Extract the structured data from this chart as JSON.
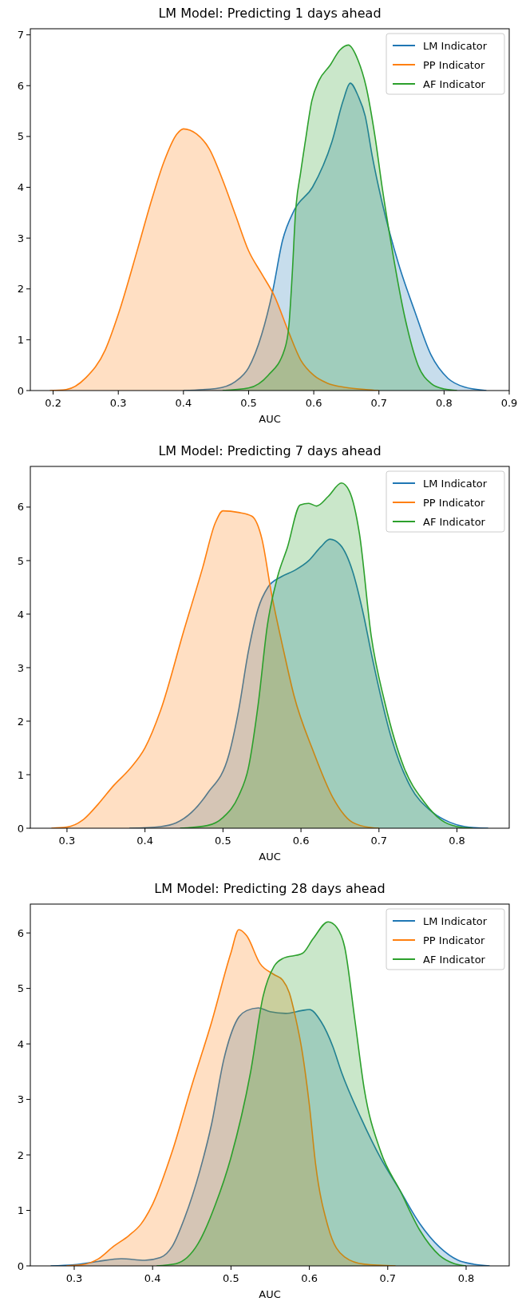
{
  "chart_data": [
    {
      "type": "area",
      "title": "LM Model: Predicting 1 days ahead",
      "xlabel": "AUC",
      "xlim": [
        0.165,
        0.9
      ],
      "xticks": [
        {
          "value": 0.2,
          "label": "0.2"
        },
        {
          "value": 0.3,
          "label": "0.3"
        },
        {
          "value": 0.4,
          "label": "0.4"
        },
        {
          "value": 0.5,
          "label": "0.5"
        },
        {
          "value": 0.6,
          "label": "0.6"
        },
        {
          "value": 0.7,
          "label": "0.7"
        },
        {
          "value": 0.8,
          "label": "0.8"
        },
        {
          "value": 0.9,
          "label": "0.9"
        }
      ],
      "ylim": [
        0,
        7.12
      ],
      "yticks": [
        0,
        1,
        2,
        3,
        4,
        5,
        6,
        7
      ],
      "legend": "top right",
      "series": [
        {
          "name": "LM Indicator",
          "color": "#1f77b4",
          "x": [
            0.4,
            0.45,
            0.48,
            0.5,
            0.52,
            0.537,
            0.552,
            0.57,
            0.598,
            0.628,
            0.645,
            0.656,
            0.668,
            0.679,
            0.69,
            0.704,
            0.73,
            0.755,
            0.78,
            0.806,
            0.831,
            0.865
          ],
          "values": [
            0,
            0.04,
            0.18,
            0.45,
            1.1,
            1.96,
            2.95,
            3.55,
            4.0,
            4.9,
            5.7,
            6.05,
            5.8,
            5.4,
            4.6,
            3.75,
            2.5,
            1.56,
            0.7,
            0.24,
            0.07,
            0
          ]
        },
        {
          "name": "PP Indicator",
          "color": "#ff7f0e",
          "x": [
            0.195,
            0.22,
            0.25,
            0.28,
            0.3,
            0.33,
            0.35,
            0.37,
            0.39,
            0.4,
            0.42,
            0.44,
            0.46,
            0.48,
            0.5,
            0.52,
            0.54,
            0.56,
            0.58,
            0.6,
            0.62,
            0.65,
            0.68,
            0.7
          ],
          "values": [
            0,
            0.02,
            0.25,
            0.8,
            1.5,
            2.8,
            3.7,
            4.5,
            5.05,
            5.15,
            5.05,
            4.75,
            4.15,
            3.45,
            2.75,
            2.3,
            1.85,
            1.2,
            0.6,
            0.3,
            0.15,
            0.06,
            0.02,
            0
          ]
        },
        {
          "name": "AF Indicator",
          "color": "#2ca02c",
          "x": [
            0.46,
            0.5,
            0.53,
            0.555,
            0.562,
            0.567,
            0.572,
            0.58,
            0.587,
            0.597,
            0.608,
            0.625,
            0.64,
            0.653,
            0.668,
            0.68,
            0.694,
            0.705,
            0.72,
            0.74,
            0.76,
            0.78,
            0.8,
            0.82
          ],
          "values": [
            0,
            0.05,
            0.3,
            0.8,
            1.3,
            2.3,
            3.5,
            4.3,
            4.9,
            5.7,
            6.1,
            6.4,
            6.7,
            6.8,
            6.5,
            6.0,
            5.0,
            4.0,
            2.8,
            1.43,
            0.5,
            0.14,
            0.03,
            0
          ]
        }
      ]
    },
    {
      "type": "area",
      "title": "LM Model: Predicting 7 days ahead",
      "xlabel": "AUC",
      "xlim": [
        0.253,
        0.867
      ],
      "xticks": [
        {
          "value": 0.3,
          "label": "0.3"
        },
        {
          "value": 0.4,
          "label": "0.4"
        },
        {
          "value": 0.5,
          "label": "0.5"
        },
        {
          "value": 0.6,
          "label": "0.6"
        },
        {
          "value": 0.7,
          "label": "0.7"
        },
        {
          "value": 0.8,
          "label": "0.8"
        }
      ],
      "ylim": [
        0,
        6.76
      ],
      "yticks": [
        0,
        1,
        2,
        3,
        4,
        5,
        6
      ],
      "legend": "top right",
      "series": [
        {
          "name": "LM Indicator",
          "color": "#1f77b4",
          "x": [
            0.38,
            0.42,
            0.44,
            0.46,
            0.48,
            0.5075,
            0.52,
            0.5325,
            0.545,
            0.5575,
            0.575,
            0.591,
            0.61,
            0.625,
            0.637,
            0.65,
            0.666,
            0.68,
            0.691,
            0.716,
            0.741,
            0.766,
            0.791,
            0.81,
            0.84
          ],
          "values": [
            0,
            0.03,
            0.1,
            0.3,
            0.65,
            1.37,
            2.2,
            3.3,
            4.1,
            4.5,
            4.7,
            4.81,
            5.0,
            5.25,
            5.4,
            5.3,
            4.81,
            4.0,
            3.21,
            1.68,
            0.76,
            0.33,
            0.11,
            0.03,
            0
          ]
        },
        {
          "name": "PP Indicator",
          "color": "#ff7f0e",
          "x": [
            0.28,
            0.3,
            0.32,
            0.34,
            0.36,
            0.38,
            0.4,
            0.42,
            0.45,
            0.474,
            0.49,
            0.5,
            0.52,
            0.537,
            0.55,
            0.562,
            0.578,
            0.591,
            0.616,
            0.641,
            0.666,
            0.69,
            0.7
          ],
          "values": [
            0,
            0.02,
            0.15,
            0.45,
            0.8,
            1.1,
            1.5,
            2.2,
            3.7,
            4.87,
            5.7,
            5.93,
            5.9,
            5.83,
            5.4,
            4.4,
            3.3,
            2.48,
            1.43,
            0.57,
            0.11,
            0.01,
            0
          ]
        },
        {
          "name": "AF Indicator",
          "color": "#2ca02c",
          "x": [
            0.445,
            0.48,
            0.5,
            0.52,
            0.5325,
            0.545,
            0.557,
            0.57,
            0.5825,
            0.599,
            0.61,
            0.62,
            0.635,
            0.652,
            0.662,
            0.675,
            0.69,
            0.7075,
            0.7325,
            0.7575,
            0.78,
            0.8,
            0.82
          ],
          "values": [
            0,
            0.05,
            0.2,
            0.6,
            1.12,
            2.3,
            3.8,
            4.7,
            5.24,
            6.04,
            6.07,
            6.02,
            6.2,
            6.45,
            6.3,
            5.5,
            3.6,
            2.35,
            1.12,
            0.5,
            0.15,
            0.03,
            0
          ]
        }
      ]
    },
    {
      "type": "area",
      "title": "LM Model: Predicting 28 days ahead",
      "xlabel": "AUC",
      "xlim": [
        0.244,
        0.855
      ],
      "xticks": [
        {
          "value": 0.3,
          "label": "0.3"
        },
        {
          "value": 0.4,
          "label": "0.4"
        },
        {
          "value": 0.5,
          "label": "0.5"
        },
        {
          "value": 0.6,
          "label": "0.6"
        },
        {
          "value": 0.7,
          "label": "0.7"
        },
        {
          "value": 0.8,
          "label": "0.8"
        }
      ],
      "ylim": [
        0,
        6.52
      ],
      "yticks": [
        0,
        1,
        2,
        3,
        4,
        5,
        6
      ],
      "legend": "top right",
      "series": [
        {
          "name": "LM Indicator",
          "color": "#1f77b4",
          "x": [
            0.27,
            0.3,
            0.33,
            0.36,
            0.39,
            0.41,
            0.425,
            0.441,
            0.46,
            0.475,
            0.491,
            0.508,
            0.52,
            0.535,
            0.55,
            0.57,
            0.59,
            0.6,
            0.615,
            0.63,
            0.641,
            0.666,
            0.691,
            0.716,
            0.741,
            0.766,
            0.79,
            0.81,
            0.83
          ],
          "values": [
            0,
            0.02,
            0.08,
            0.13,
            0.1,
            0.15,
            0.35,
            0.87,
            1.7,
            2.54,
            3.73,
            4.44,
            4.6,
            4.65,
            4.58,
            4.55,
            4.6,
            4.62,
            4.4,
            3.95,
            3.49,
            2.66,
            1.94,
            1.35,
            0.76,
            0.34,
            0.1,
            0.03,
            0
          ]
        },
        {
          "name": "PP Indicator",
          "color": "#ff7f0e",
          "x": [
            0.29,
            0.31,
            0.33,
            0.35,
            0.37,
            0.385,
            0.4,
            0.425,
            0.45,
            0.475,
            0.4997,
            0.51,
            0.52,
            0.537,
            0.555,
            0.566,
            0.5745,
            0.582,
            0.591,
            0.6,
            0.608,
            0.624,
            0.645,
            0.67,
            0.71
          ],
          "values": [
            0,
            0.02,
            0.12,
            0.35,
            0.55,
            0.75,
            1.11,
            2.06,
            3.25,
            4.38,
            5.63,
            6.06,
            5.95,
            5.45,
            5.25,
            5.15,
            4.92,
            4.5,
            3.85,
            2.9,
            1.83,
            0.7,
            0.16,
            0.03,
            0
          ]
        },
        {
          "name": "AF Indicator",
          "color": "#2ca02c",
          "x": [
            0.405,
            0.43,
            0.458,
            0.48,
            0.4997,
            0.525,
            0.541,
            0.555,
            0.566,
            0.591,
            0.605,
            0.624,
            0.635,
            0.645,
            0.658,
            0.67,
            0.691,
            0.716,
            0.741,
            0.766,
            0.785,
            0.8
          ],
          "values": [
            0,
            0.04,
            0.4,
            1.1,
            1.94,
            3.49,
            4.86,
            5.4,
            5.54,
            5.63,
            5.9,
            6.2,
            6.1,
            5.75,
            4.44,
            3.19,
            2.06,
            1.35,
            0.64,
            0.19,
            0.04,
            0
          ]
        }
      ]
    }
  ]
}
